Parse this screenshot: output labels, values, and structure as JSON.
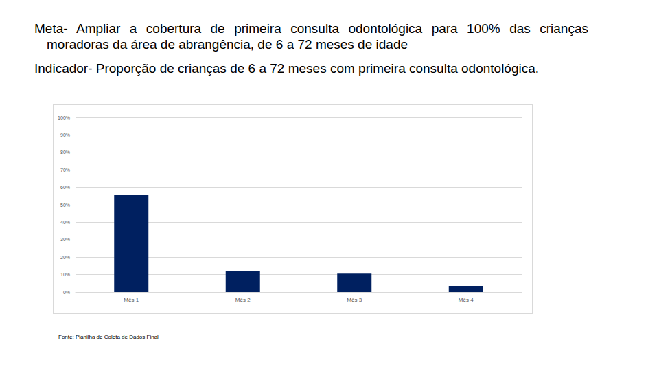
{
  "heading": [
    "Meta- Ampliar a cobertura de primeira consulta odontológica para 100% das crianças moradoras da área de abrangência, de 6 a 72 meses de idade",
    "Indicador- Proporção de crianças de 6 a 72 meses com primeira consulta odontológica."
  ],
  "source": "Fonte: Planilha de Coleta de Dados Final",
  "chart_data": {
    "type": "bar",
    "categories": [
      "Mês 1",
      "Mês 2",
      "Mês 3",
      "Mês 4"
    ],
    "values": [
      55.5,
      12,
      10.5,
      3.5
    ],
    "color": "#002060",
    "ylim": [
      0,
      100
    ],
    "yticks": [
      {
        "value": 0,
        "label": "0%"
      },
      {
        "value": 10,
        "label": "10%"
      },
      {
        "value": 20,
        "label": "20%"
      },
      {
        "value": 30,
        "label": "30%"
      },
      {
        "value": 40,
        "label": "40%"
      },
      {
        "value": 50,
        "label": "50%"
      },
      {
        "value": 60,
        "label": "60%"
      },
      {
        "value": 70,
        "label": "70%"
      },
      {
        "value": 80,
        "label": "80%"
      },
      {
        "value": 90,
        "label": "90%"
      },
      {
        "value": 100,
        "label": "100%"
      }
    ],
    "grid": true
  }
}
